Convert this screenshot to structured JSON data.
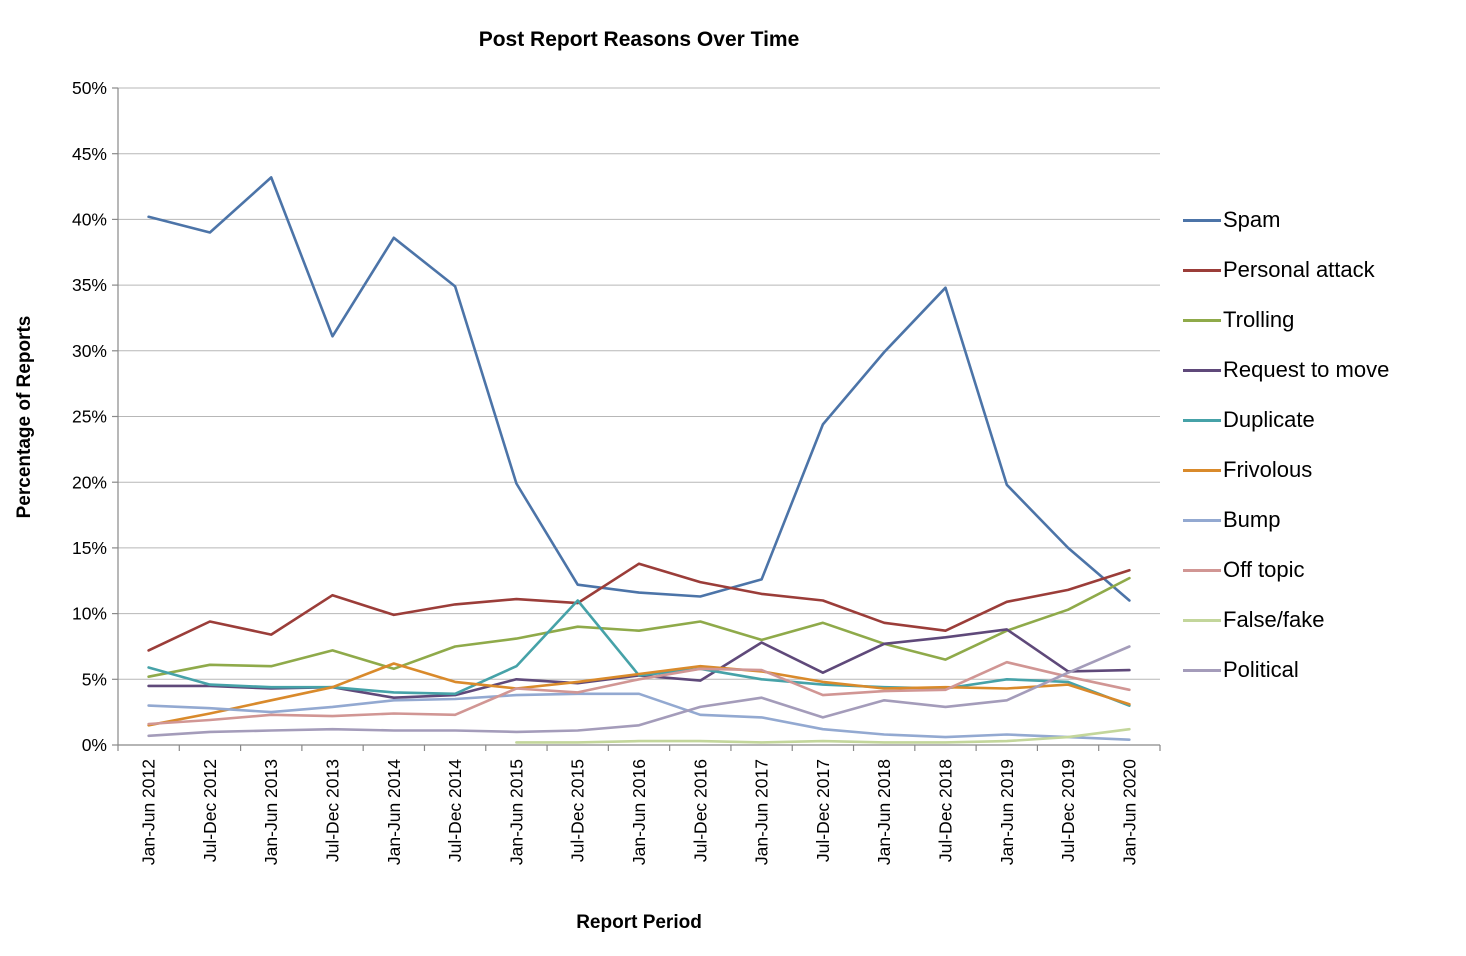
{
  "chart_data": {
    "type": "line",
    "title": "Post Report Reasons Over Time",
    "xlabel": "Report Period",
    "ylabel": "Percentage of Reports",
    "ylim": [
      0,
      50
    ],
    "ytick_step": 5,
    "y_tick_labels": [
      "0%",
      "5%",
      "10%",
      "15%",
      "20%",
      "25%",
      "30%",
      "35%",
      "40%",
      "45%",
      "50%"
    ],
    "grid": true,
    "legend_position": "right",
    "categories": [
      "Jan-Jun 2012",
      "Jul-Dec 2012",
      "Jan-Jun 2013",
      "Jul-Dec 2013",
      "Jan-Jun 2014",
      "Jul-Dec 2014",
      "Jan-Jun 2015",
      "Jul-Dec 2015",
      "Jan-Jun 2016",
      "Jul-Dec 2016",
      "Jan-Jun 2017",
      "Jul-Dec 2017",
      "Jan-Jun 2018",
      "Jul-Dec 2018",
      "Jan-Jun 2019",
      "Jul-Dec 2019",
      "Jan-Jun 2020"
    ],
    "series": [
      {
        "name": "Spam",
        "color": "#4c74a8",
        "values": [
          40.2,
          39.0,
          43.2,
          31.1,
          38.6,
          34.9,
          19.9,
          12.2,
          11.6,
          11.3,
          12.6,
          24.4,
          29.9,
          34.8,
          19.8,
          15.0,
          11.0
        ]
      },
      {
        "name": "Personal attack",
        "color": "#9b3d39",
        "values": [
          7.2,
          9.4,
          8.4,
          11.4,
          9.9,
          10.7,
          11.1,
          10.8,
          13.8,
          12.4,
          11.5,
          11.0,
          9.3,
          8.7,
          10.9,
          11.8,
          13.3
        ]
      },
      {
        "name": "Trolling",
        "color": "#8faa4a",
        "values": [
          5.2,
          6.1,
          6.0,
          7.2,
          5.8,
          7.5,
          8.1,
          9.0,
          8.7,
          9.4,
          8.0,
          9.3,
          7.7,
          6.5,
          8.7,
          10.3,
          12.7
        ]
      },
      {
        "name": "Request to move",
        "color": "#5f497a",
        "values": [
          4.5,
          4.5,
          4.3,
          4.4,
          3.6,
          3.8,
          5.0,
          4.7,
          5.3,
          4.9,
          7.8,
          5.5,
          7.7,
          8.2,
          8.8,
          5.6,
          5.7
        ]
      },
      {
        "name": "Duplicate",
        "color": "#46a2a8",
        "values": [
          5.9,
          4.6,
          4.4,
          4.4,
          4.0,
          3.9,
          6.0,
          11.0,
          5.3,
          5.8,
          5.0,
          4.6,
          4.4,
          4.3,
          5.0,
          4.8,
          3.0
        ]
      },
      {
        "name": "Frivolous",
        "color": "#d98a2b",
        "values": [
          1.5,
          2.4,
          3.4,
          4.4,
          6.2,
          4.8,
          4.3,
          4.8,
          5.4,
          6.0,
          5.6,
          4.8,
          4.3,
          4.4,
          4.3,
          4.6,
          3.1
        ]
      },
      {
        "name": "Bump",
        "color": "#93a9d1",
        "values": [
          3.0,
          2.8,
          2.5,
          2.9,
          3.4,
          3.5,
          3.8,
          3.9,
          3.9,
          2.3,
          2.1,
          1.2,
          0.8,
          0.6,
          0.8,
          0.6,
          0.4
        ]
      },
      {
        "name": "Off topic",
        "color": "#d19694",
        "values": [
          1.6,
          1.9,
          2.3,
          2.2,
          2.4,
          2.3,
          4.3,
          4.0,
          5.0,
          5.8,
          5.7,
          3.8,
          4.1,
          4.2,
          6.3,
          5.2,
          4.2
        ]
      },
      {
        "name": "False/fake",
        "color": "#c3d69b",
        "values": [
          null,
          null,
          null,
          null,
          null,
          null,
          0.2,
          0.2,
          0.3,
          0.3,
          0.2,
          0.3,
          0.2,
          0.2,
          0.3,
          0.6,
          1.2
        ]
      },
      {
        "name": "Political",
        "color": "#a49cba",
        "values": [
          0.7,
          1.0,
          1.1,
          1.2,
          1.1,
          1.1,
          1.0,
          1.1,
          1.5,
          2.9,
          3.6,
          2.1,
          3.4,
          2.9,
          3.4,
          5.5,
          7.5
        ]
      }
    ],
    "style": {
      "grid_color": "#b7b7b7",
      "axis_color": "#898989",
      "tick_label_color": "#000000"
    }
  }
}
